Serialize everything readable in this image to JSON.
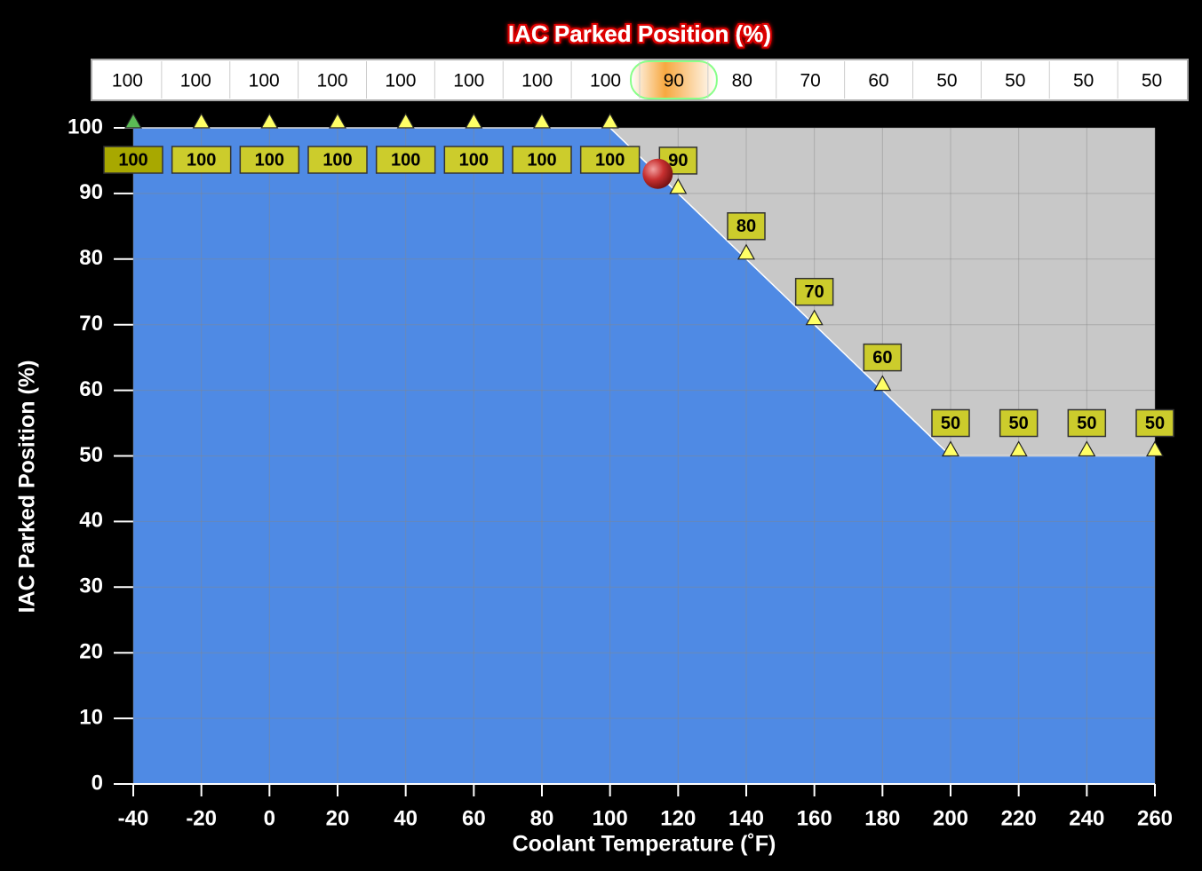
{
  "chart_data": {
    "type": "area",
    "title": "IAC Parked Position (%)",
    "x_label": "Coolant Temperature (˚F)",
    "y_label": "IAC Parked Position (%)",
    "x": [
      -40,
      -20,
      0,
      20,
      40,
      60,
      80,
      100,
      120,
      140,
      160,
      180,
      200,
      220,
      240,
      260
    ],
    "values": [
      100,
      100,
      100,
      100,
      100,
      100,
      100,
      100,
      90,
      80,
      70,
      60,
      50,
      50,
      50,
      50
    ],
    "xlim": [
      -40,
      260
    ],
    "xticks": [
      -40,
      -20,
      0,
      20,
      40,
      60,
      80,
      100,
      120,
      140,
      160,
      180,
      200,
      220,
      240,
      260
    ],
    "ylim": [
      0,
      100
    ],
    "yticks": [
      0,
      10,
      20,
      30,
      40,
      50,
      60,
      70,
      80,
      90,
      100
    ],
    "grid": true,
    "color": "#4f8ae4",
    "background": "#c8c8c8",
    "cursor": {
      "x": 114,
      "y": 93
    },
    "selected_index": 0,
    "highlight_index": 8
  }
}
